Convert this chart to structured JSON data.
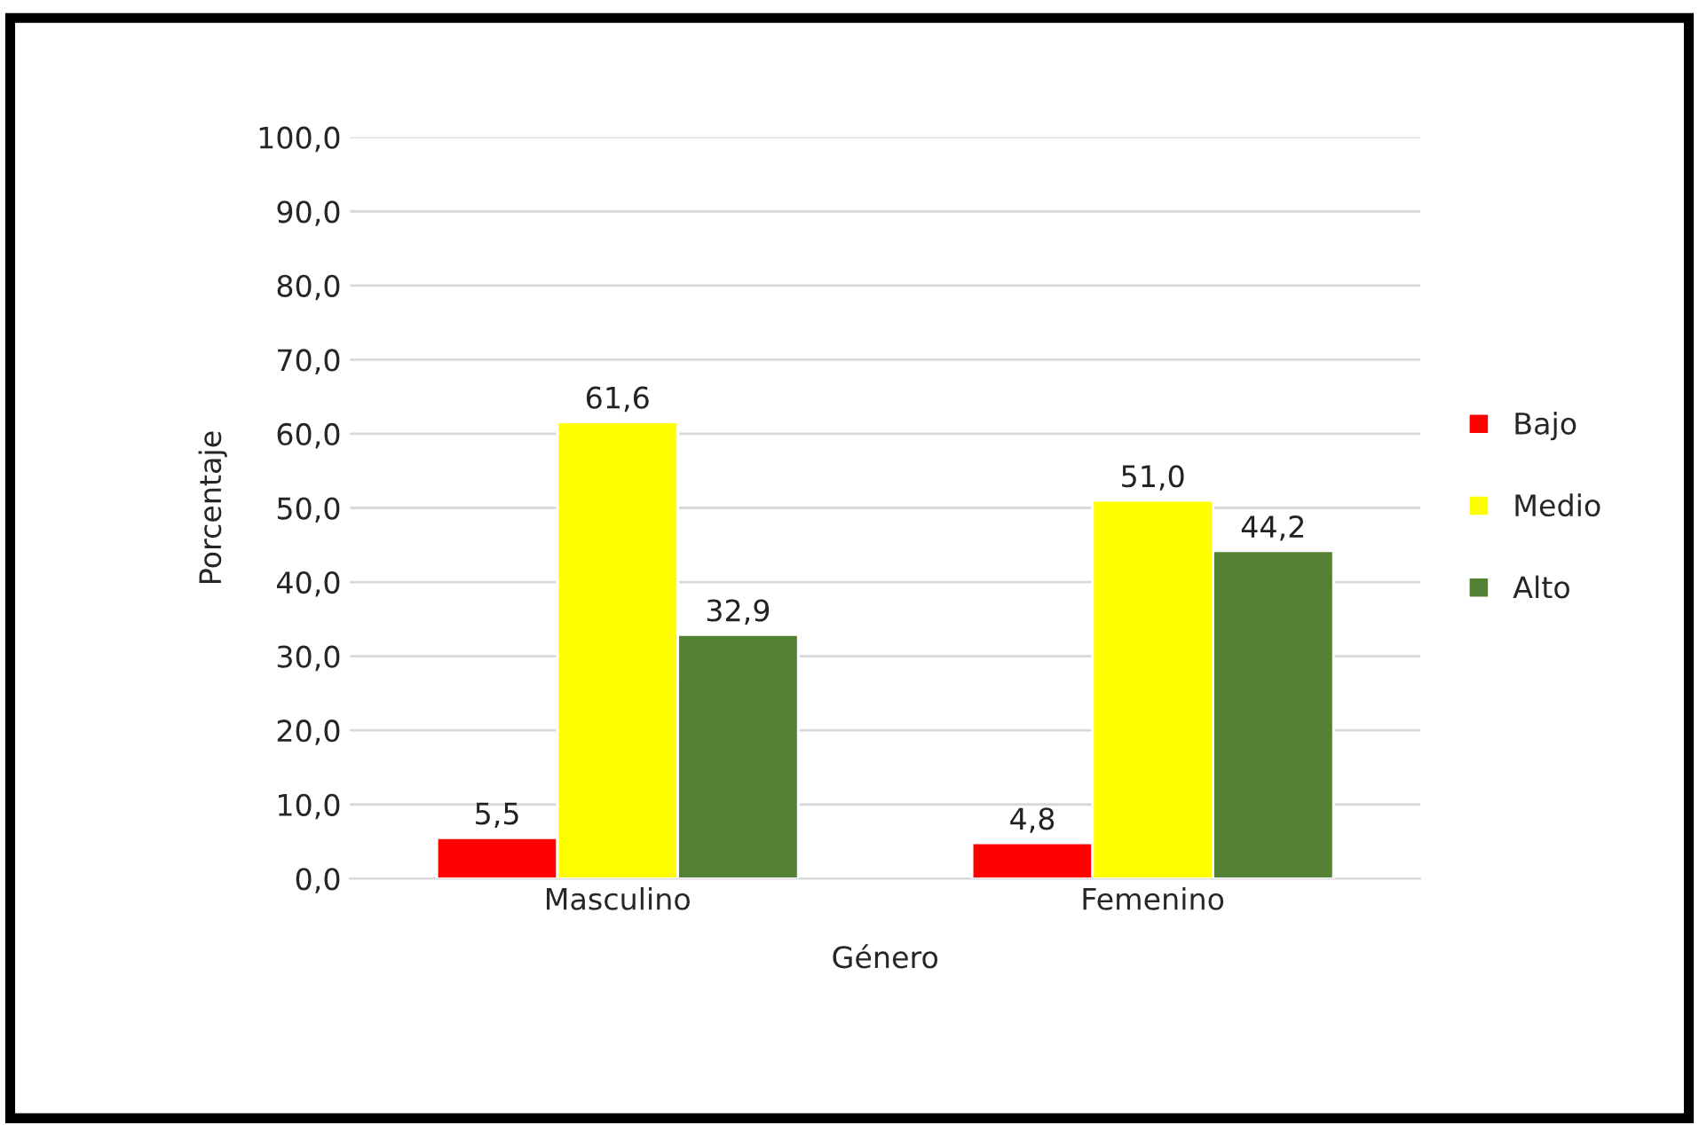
{
  "chart_data": {
    "type": "bar",
    "xlabel": "Género",
    "ylabel": "Porcentaje",
    "categories": [
      "Masculino",
      "Femenino"
    ],
    "series": [
      {
        "name": "Bajo",
        "color": "#ff0000",
        "values": [
          5.5,
          4.8
        ],
        "value_labels": [
          "5,5",
          "4,8"
        ]
      },
      {
        "name": "Medio",
        "color": "#ffff00",
        "values": [
          61.6,
          51.0
        ],
        "value_labels": [
          "61,6",
          "51,0"
        ]
      },
      {
        "name": "Alto",
        "color": "#548235",
        "values": [
          32.9,
          44.2
        ],
        "value_labels": [
          "32,9",
          "44,2"
        ]
      }
    ],
    "ylim": [
      0,
      100
    ],
    "yticks": [
      {
        "value": 0,
        "label": "0,0"
      },
      {
        "value": 10,
        "label": "10,0"
      },
      {
        "value": 20,
        "label": "20,0"
      },
      {
        "value": 30,
        "label": "30,0"
      },
      {
        "value": 40,
        "label": "40,0"
      },
      {
        "value": 50,
        "label": "50,0"
      },
      {
        "value": 60,
        "label": "60,0"
      },
      {
        "value": 70,
        "label": "70,0"
      },
      {
        "value": 80,
        "label": "80,0"
      },
      {
        "value": 90,
        "label": "90,0"
      },
      {
        "value": 100,
        "label": "100,0"
      }
    ],
    "grid": "y",
    "legend": "right"
  }
}
